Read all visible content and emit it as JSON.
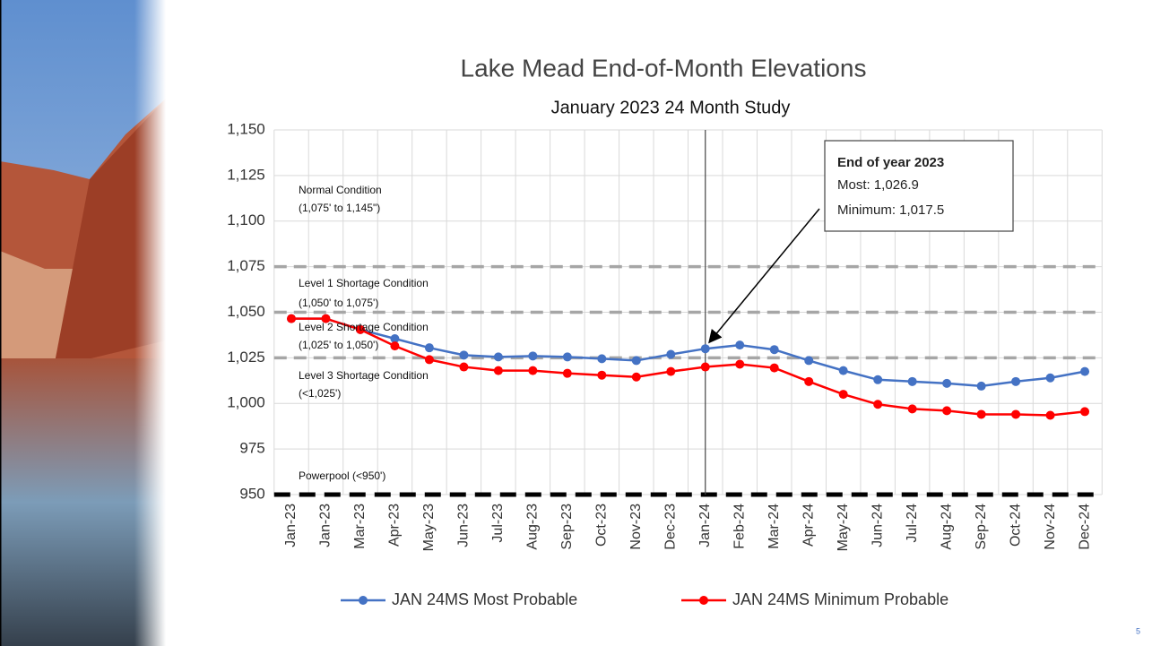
{
  "chart_data": {
    "type": "line",
    "title": "Lake Mead End-of-Month Elevations",
    "subtitle": "January 2023  24 Month Study",
    "categories": [
      "Jan-23",
      "Jan-23",
      "Mar-23",
      "Apr-23",
      "May-23",
      "Jun-23",
      "Jul-23",
      "Aug-23",
      "Sep-23",
      "Oct-23",
      "Nov-23",
      "Dec-23",
      "Jan-24",
      "Feb-24",
      "Mar-24",
      "Apr-24",
      "May-24",
      "Jun-24",
      "Jul-24",
      "Aug-24",
      "Sep-24",
      "Oct-24",
      "Nov-24",
      "Dec-24"
    ],
    "series": [
      {
        "name": "JAN 24MS Most Probable",
        "color": "#4472c4",
        "values": [
          1046.5,
          1046.5,
          1040.5,
          1035.5,
          1030.5,
          1026.5,
          1025.5,
          1026,
          1025.5,
          1024.5,
          1023.5,
          1026.9,
          1030,
          1032,
          1029.5,
          1023.5,
          1018,
          1013,
          1012,
          1011,
          1009.5,
          1012,
          1014,
          1017.5
        ]
      },
      {
        "name": "JAN 24MS Minimum Probable",
        "color": "#ff0000",
        "values": [
          1046.5,
          1046.5,
          1040.5,
          1031.5,
          1024,
          1020,
          1018,
          1018,
          1016.5,
          1015.5,
          1014.5,
          1017.5,
          1020,
          1021.5,
          1019.5,
          1012,
          1005,
          999.5,
          997,
          996,
          994,
          994,
          993.5,
          995.5
        ]
      }
    ],
    "ylim": [
      950,
      1150
    ],
    "yticks": [
      950,
      975,
      {
        "value": 1000,
        "label": "1,000"
      },
      {
        "value": 1025,
        "label": "1,025"
      },
      {
        "value": 1050,
        "label": "1,050"
      },
      {
        "value": 1075,
        "label": "1,075"
      },
      {
        "value": 1100,
        "label": "1,100"
      },
      {
        "value": 1125,
        "label": "1,125"
      },
      {
        "value": 1150,
        "label": "1,150"
      }
    ],
    "grid": true,
    "reference_lines": [
      {
        "value": 1075,
        "color": "#a6a6a6"
      },
      {
        "value": 1050,
        "color": "#a6a6a6"
      },
      {
        "value": 1025,
        "color": "#a6a6a6"
      },
      {
        "value": 950,
        "color": "#000000"
      }
    ],
    "zone_labels": [
      "Normal Condition",
      "(1,075' to 1,145\")",
      "Level 1 Shortage Condition",
      "(1,050' to 1,075')",
      "Level 2 Shortage Condition",
      "(1,025' to 1,050')",
      "Level 3 Shortage Condition",
      "(<1,025')",
      "Powerpool (<950')"
    ],
    "callout": {
      "title": "End of year 2023",
      "lines": [
        "Most: 1,026.9",
        "Minimum: 1,017.5"
      ]
    }
  },
  "slide_number": "5"
}
